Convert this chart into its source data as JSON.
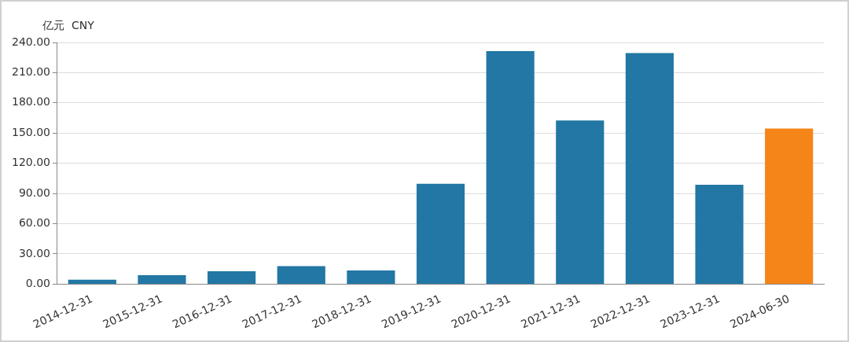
{
  "chart_data": {
    "type": "bar",
    "ylabel": "亿元  CNY",
    "categories": [
      "2014-12-31",
      "2015-12-31",
      "2016-12-31",
      "2017-12-31",
      "2018-12-31",
      "2019-12-31",
      "2020-12-31",
      "2021-12-31",
      "2022-12-31",
      "2023-12-31",
      "2024-06-30"
    ],
    "values": [
      4.5,
      8.9,
      12.8,
      17.8,
      13.6,
      99.7,
      231.4,
      162.6,
      229.4,
      98.6,
      154.5
    ],
    "colors": [
      "#2277a4",
      "#2277a4",
      "#2277a4",
      "#2277a4",
      "#2277a4",
      "#2277a4",
      "#2277a4",
      "#2277a4",
      "#2277a4",
      "#2277a4",
      "#f58518"
    ],
    "ylim": [
      0,
      240
    ],
    "yticks": [
      {
        "value": 0,
        "label": "0.00"
      },
      {
        "value": 30,
        "label": "30.00"
      },
      {
        "value": 60,
        "label": "60.00"
      },
      {
        "value": 90,
        "label": "90.00"
      },
      {
        "value": 120,
        "label": "120.00"
      },
      {
        "value": 150,
        "label": "150.00"
      },
      {
        "value": 180,
        "label": "180.00"
      },
      {
        "value": 210,
        "label": "210.00"
      },
      {
        "value": 240,
        "label": "240.00"
      }
    ],
    "grid": "y",
    "legend": false
  }
}
